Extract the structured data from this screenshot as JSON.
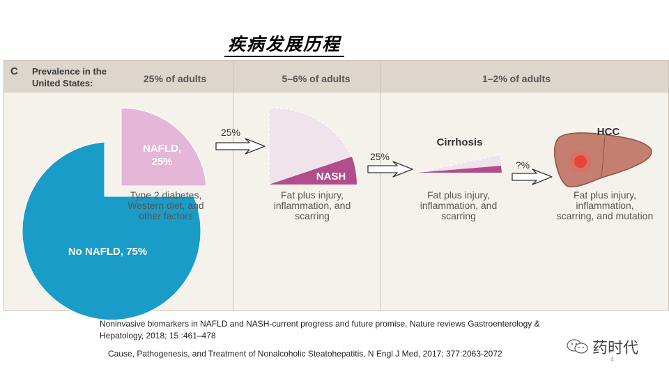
{
  "slide_title": "疾病发展历程",
  "panel": {
    "letter": "C",
    "prevalence_label": "Prevalence in the United States:",
    "headers": [
      "25% of adults",
      "5–6% of adults",
      "1–2% of adults"
    ]
  },
  "stages": {
    "no_nafld": "No NAFLD, 75%",
    "nafld": "NAFLD, 25%",
    "nafld_factors": "Type 2 diabetes, Western diet, and other factors",
    "nash_label": "NASH",
    "nash_caption": "Fat plus injury, inflammation, and scarring",
    "cirrhosis_label": "Cirrhosis",
    "cirrhosis_caption": "Fat plus injury, inflammation, and scarring",
    "hcc_label": "HCC",
    "hcc_caption": "Fat plus injury, inflammation, scarring, and mutation"
  },
  "arrows": {
    "nafld_to_nash": "25%",
    "nash_to_cirrhosis": "25%",
    "cirrhosis_to_hcc": "?%"
  },
  "colors": {
    "no_nafld": "#1a9cc9",
    "nafld": "#e4b6d8",
    "nash": "#b24d8c",
    "pale_wedge": "#f0e3ec",
    "liver": "#c47f70",
    "tumor": "#e8443a"
  },
  "references": [
    "Noninvasive biomarkers in NAFLD and NASH-current progress and future promise, Nature reviews Gastroenterology & Hepatology, 2018; 15 :461–478",
    "Cause, Pathogenesis, and Treatment of Nonalcoholic Steatohepatitis, N Engl J Med, 2017; 377:2063-2072"
  ],
  "watermark": "药时代",
  "page_number": "4"
}
